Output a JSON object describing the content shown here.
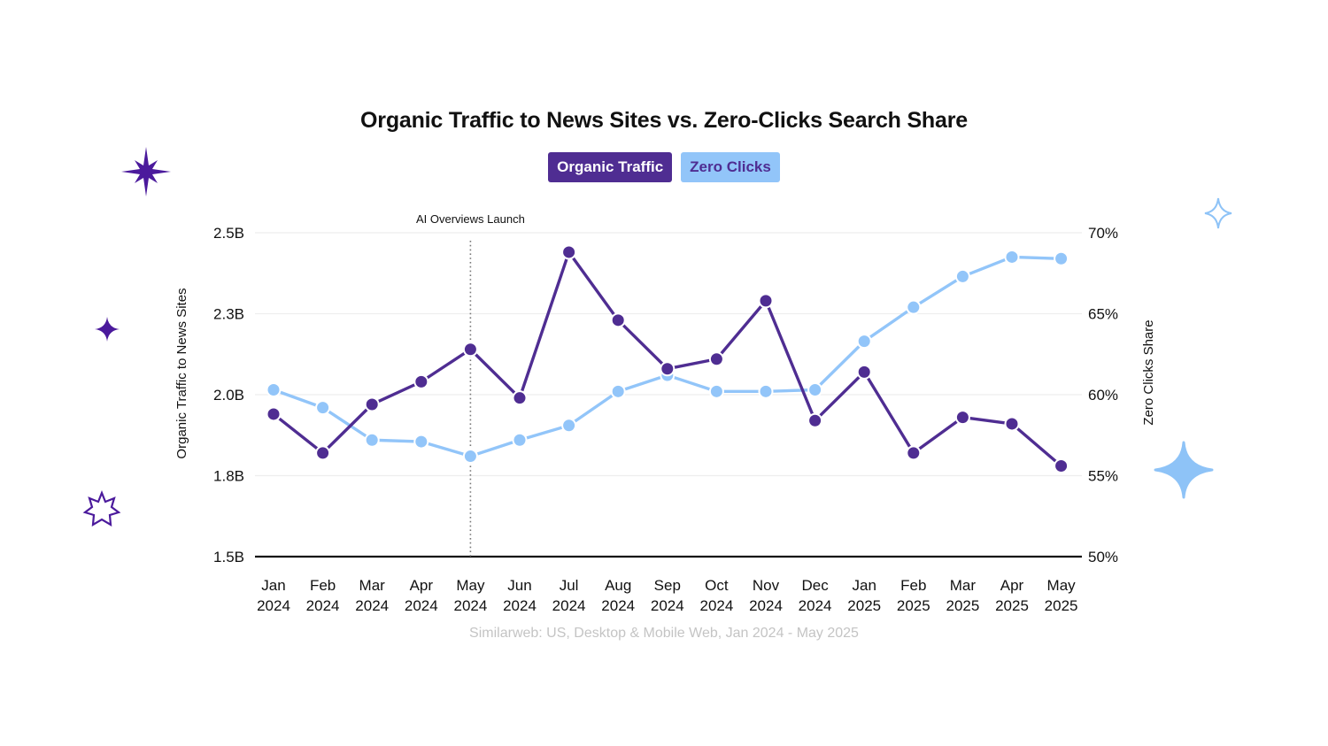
{
  "title": "Organic Traffic to News Sites vs. Zero-Clicks Search Share",
  "legend": {
    "organic": "Organic Traffic",
    "zero": "Zero Clicks"
  },
  "annotation": "AI Overviews Launch",
  "source": "Similarweb: US, Desktop & Mobile Web, Jan 2024 - May 2025",
  "colors": {
    "organic": "#4f2d92",
    "zero": "#92c5f9",
    "grid": "#eeeeee",
    "baseline": "#111111",
    "deco_purple": "#4b1a9c",
    "deco_blue": "#8ec3f7"
  },
  "chart_data": {
    "type": "line",
    "title": "Organic Traffic to News Sites vs. Zero-Clicks Search Share",
    "categories": [
      "Jan 2024",
      "Feb 2024",
      "Mar 2024",
      "Apr 2024",
      "May 2024",
      "Jun 2024",
      "Jul 2024",
      "Aug 2024",
      "Sep 2024",
      "Oct 2024",
      "Nov 2024",
      "Dec 2024",
      "Jan 2025",
      "Feb 2025",
      "Mar 2025",
      "Apr 2025",
      "May 2025"
    ],
    "x_labels": [
      [
        "Jan",
        "2024"
      ],
      [
        "Feb",
        "2024"
      ],
      [
        "Mar",
        "2024"
      ],
      [
        "Apr",
        "2024"
      ],
      [
        "May",
        "2024"
      ],
      [
        "Jun",
        "2024"
      ],
      [
        "Jul",
        "2024"
      ],
      [
        "Aug",
        "2024"
      ],
      [
        "Sep",
        "2024"
      ],
      [
        "Oct",
        "2024"
      ],
      [
        "Nov",
        "2024"
      ],
      [
        "Dec",
        "2024"
      ],
      [
        "Jan",
        "2025"
      ],
      [
        "Feb",
        "2025"
      ],
      [
        "Mar",
        "2025"
      ],
      [
        "Apr",
        "2025"
      ],
      [
        "May",
        "2025"
      ]
    ],
    "series": [
      {
        "name": "Organic Traffic",
        "axis": "left",
        "unit": "B",
        "values": [
          1.94,
          1.82,
          1.97,
          2.04,
          2.14,
          1.99,
          2.44,
          2.23,
          2.08,
          2.11,
          2.29,
          1.92,
          2.07,
          1.82,
          1.93,
          1.91,
          1.78
        ]
      },
      {
        "name": "Zero Clicks",
        "axis": "right",
        "unit": "%",
        "values": [
          60.3,
          59.2,
          57.2,
          57.1,
          56.2,
          57.2,
          58.1,
          60.2,
          61.2,
          60.2,
          60.2,
          60.3,
          63.3,
          65.4,
          67.3,
          68.5,
          68.4
        ]
      }
    ],
    "ylabel": "Organic Traffic to News Sites",
    "ylabel_right": "Zero Clicks Share",
    "xlabel": "",
    "ylim": [
      1.5,
      2.5
    ],
    "ylim_right": [
      50,
      70
    ],
    "yticks": [
      "2.5B",
      "2.3B",
      "2.0B",
      "1.8B",
      "1.5B"
    ],
    "yticks_right": [
      "70%",
      "65%",
      "60%",
      "55%",
      "50%"
    ],
    "annotations": [
      {
        "text": "AI Overviews Launch",
        "x": "May 2024",
        "style": "dotted vertical line"
      }
    ],
    "grid": true,
    "legend_position": "top-center"
  }
}
